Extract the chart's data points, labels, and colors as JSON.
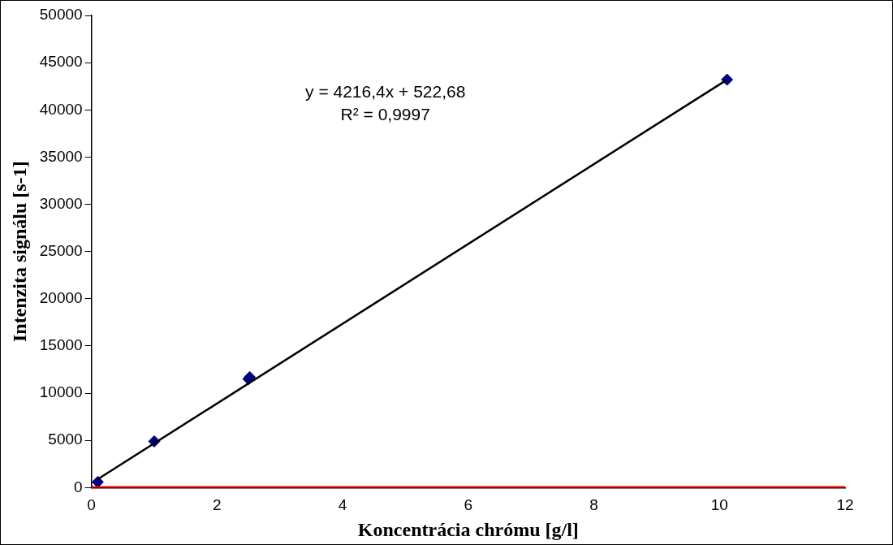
{
  "chart_data": {
    "type": "scatter",
    "xlabel": "Koncentrácia chrómu [g/l]",
    "ylabel": "Intenzita signálu [s-1]",
    "xlim": [
      0,
      12
    ],
    "xticks": [
      0,
      2,
      4,
      6,
      8,
      10,
      12
    ],
    "ylim": [
      0,
      50000
    ],
    "yticks": [
      0,
      5000,
      10000,
      15000,
      20000,
      25000,
      30000,
      35000,
      40000,
      45000,
      50000
    ],
    "grid": false,
    "legend": false,
    "marker": "diamond",
    "series": [
      {
        "color": "#000080",
        "x": [
          0.1,
          1.0,
          2.5,
          2.52,
          10.12
        ],
        "values": [
          600,
          4900,
          11500,
          11700,
          43200
        ]
      },
      {
        "type": "line",
        "color": "#000000",
        "x": [
          0.1,
          10.12
        ],
        "values": [
          900,
          43200
        ],
        "marker": "none"
      }
    ],
    "ref_lines": [
      {
        "axis": "y",
        "value": 0,
        "color": "#ff0000"
      }
    ],
    "annotations": [
      "y = 4216,4x + 522,68",
      "R² = 0,9997"
    ]
  }
}
